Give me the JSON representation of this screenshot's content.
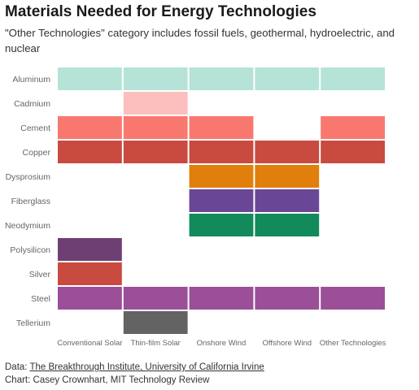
{
  "chart_data": {
    "type": "heatmap",
    "title": "Materials Needed for Energy Technologies",
    "subtitle": "\"Other Technologies\" category includes fossil fuels, geothermal, hydroelectric, and nuclear",
    "columns": [
      "Conventional Solar",
      "Thin-film Solar",
      "Onshore Wind",
      "Offshore Wind",
      "Other Technologies"
    ],
    "rows": [
      {
        "material": "Aluminum",
        "color": "#b5e3d8",
        "used_in": [
          1,
          1,
          1,
          1,
          1
        ]
      },
      {
        "material": "Cadmium",
        "color": "#fcbfbd",
        "used_in": [
          0,
          1,
          0,
          0,
          0
        ]
      },
      {
        "material": "Cement",
        "color": "#f8786f",
        "used_in": [
          1,
          1,
          1,
          0,
          1
        ]
      },
      {
        "material": "Copper",
        "color": "#c94b40",
        "used_in": [
          1,
          1,
          1,
          1,
          1
        ]
      },
      {
        "material": "Dysprosium",
        "color": "#e07f0b",
        "used_in": [
          0,
          0,
          1,
          1,
          0
        ]
      },
      {
        "material": "Fiberglass",
        "color": "#6a4796",
        "used_in": [
          0,
          0,
          1,
          1,
          0
        ]
      },
      {
        "material": "Neodymium",
        "color": "#128a5c",
        "used_in": [
          0,
          0,
          1,
          1,
          0
        ]
      },
      {
        "material": "Polysilicon",
        "color": "#6e3f72",
        "used_in": [
          1,
          0,
          0,
          0,
          0
        ]
      },
      {
        "material": "Silver",
        "color": "#c94b40",
        "used_in": [
          1,
          0,
          0,
          0,
          0
        ]
      },
      {
        "material": "Steel",
        "color": "#9a4f98",
        "used_in": [
          1,
          1,
          1,
          1,
          1
        ]
      },
      {
        "material": "Tellerium",
        "color": "#636363",
        "used_in": [
          0,
          1,
          0,
          0,
          0
        ]
      }
    ]
  },
  "footer": {
    "data_prefix": "Data: ",
    "data_sources": "The Breakthrough Institute, University of California Irvine",
    "credit": "Chart: Casey Crownhart, MIT Technology Review"
  }
}
